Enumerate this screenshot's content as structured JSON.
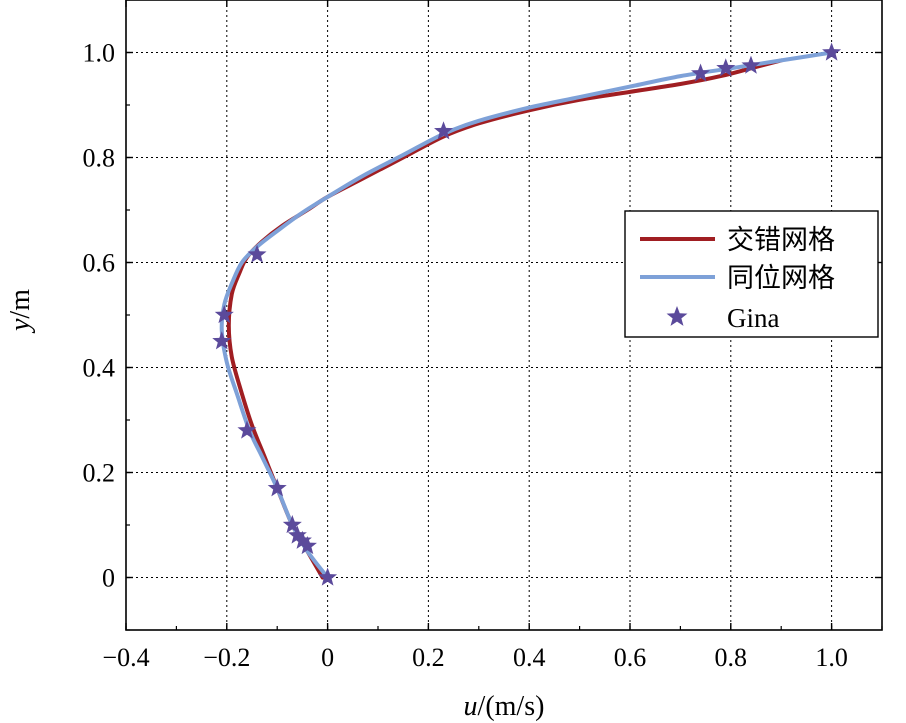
{
  "chart_data": {
    "type": "line",
    "title": "",
    "xlabel_italic": "u",
    "xlabel_rest": "/(m/s)",
    "ylabel_italic": "y",
    "ylabel_rest": "/m",
    "xlim": [
      -0.4,
      1.1
    ],
    "ylim": [
      -0.1,
      1.1
    ],
    "xticks": [
      -0.4,
      -0.2,
      0,
      0.2,
      0.4,
      0.6,
      0.8,
      1.0
    ],
    "xtick_labels": [
      "−0.4",
      "−0.2",
      "0",
      "0.2",
      "0.4",
      "0.6",
      "0.8",
      "1.0"
    ],
    "yticks": [
      0,
      0.2,
      0.4,
      0.6,
      0.8,
      1.0
    ],
    "ytick_labels": [
      "0",
      "0.2",
      "0.4",
      "0.6",
      "0.8",
      "1.0"
    ],
    "grid": true,
    "legend_position": "right",
    "series": [
      {
        "name": "交错网格",
        "style": "line",
        "color": "#a01e22",
        "x": [
          -0.01,
          -0.04,
          -0.07,
          -0.1,
          -0.125,
          -0.15,
          -0.17,
          -0.19,
          -0.196,
          -0.19,
          -0.175,
          -0.16,
          -0.13,
          -0.09,
          -0.04,
          0.0,
          0.07,
          0.15,
          0.23,
          0.3,
          0.4,
          0.5,
          0.6,
          0.7,
          0.78,
          0.84,
          0.9
        ],
        "y": [
          0.0,
          0.05,
          0.1,
          0.17,
          0.23,
          0.29,
          0.35,
          0.42,
          0.48,
          0.54,
          0.58,
          0.61,
          0.64,
          0.67,
          0.7,
          0.725,
          0.76,
          0.8,
          0.84,
          0.865,
          0.89,
          0.91,
          0.925,
          0.94,
          0.955,
          0.97,
          0.985
        ]
      },
      {
        "name": "同位网格",
        "style": "line",
        "color": "#7ea1d8",
        "x": [
          0.0,
          -0.04,
          -0.07,
          -0.1,
          -0.13,
          -0.155,
          -0.18,
          -0.2,
          -0.21,
          -0.205,
          -0.19,
          -0.17,
          -0.14,
          -0.1,
          -0.05,
          0.0,
          0.07,
          0.15,
          0.23,
          0.3,
          0.4,
          0.5,
          0.6,
          0.7,
          0.8,
          0.9,
          1.0
        ],
        "y": [
          0.0,
          0.05,
          0.1,
          0.17,
          0.23,
          0.28,
          0.35,
          0.41,
          0.47,
          0.52,
          0.56,
          0.6,
          0.63,
          0.66,
          0.695,
          0.725,
          0.765,
          0.805,
          0.845,
          0.87,
          0.895,
          0.915,
          0.935,
          0.955,
          0.97,
          0.985,
          1.0
        ]
      },
      {
        "name": "Gina",
        "style": "marker",
        "marker": "star",
        "color": "#5b4a9b",
        "x": [
          0.0,
          -0.04,
          -0.05,
          -0.06,
          -0.07,
          -0.1,
          -0.16,
          -0.21,
          -0.205,
          -0.14,
          0.23,
          0.74,
          0.79,
          0.84,
          1.0
        ],
        "y": [
          0.0,
          0.06,
          0.07,
          0.08,
          0.1,
          0.17,
          0.28,
          0.45,
          0.5,
          0.615,
          0.85,
          0.96,
          0.97,
          0.975,
          1.0
        ]
      }
    ]
  }
}
